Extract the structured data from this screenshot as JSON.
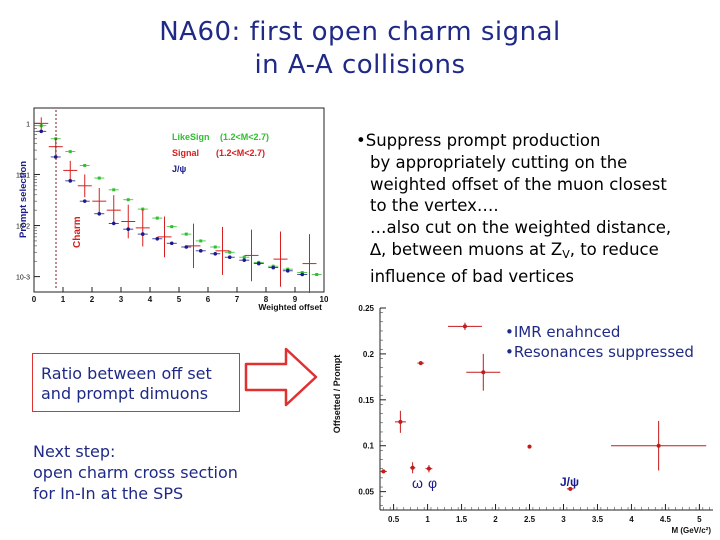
{
  "slide": {
    "title_line1": "NA60: first open charm signal",
    "title_line2": "in A-A collisions",
    "bullet1_lines": [
      "Suppress prompt production",
      "by appropriately cutting on the",
      "weighted offset of the muon closest",
      "to the vertex….",
      "…also cut on the weighted distance,"
    ],
    "bullet1_line6_a": "∆, between muons at Z",
    "bullet1_line6_sub": "V",
    "bullet1_line6_b": ", to reduce",
    "bullet1_line7": "influence of bad vertices",
    "bullet_marker": "•",
    "ratio_line1": "Ratio between off set",
    "ratio_line2": "and prompt dimuons",
    "next_line1": "Next step:",
    "next_line2": "open charm cross section",
    "next_line3": "for In-In at the SPS",
    "note1": "•IMR enahnced",
    "note2": "•Resonances suppressed"
  },
  "colors": {
    "title": "#1f2a86",
    "likesign": "#2ec02e",
    "signal": "#d62020",
    "jpsi": "#1a1a8c",
    "ratio_points": "#c41a1a"
  },
  "chart_data": [
    {
      "type": "scatter",
      "xlabel": "Weighted offset",
      "ylabel": "",
      "y_scale": "log",
      "xlim": [
        0,
        10
      ],
      "ylim": [
        0.0005,
        2
      ],
      "x_ticks": [
        "0",
        "1",
        "2",
        "3",
        "4",
        "5",
        "6",
        "7",
        "8",
        "9",
        "10"
      ],
      "y_ticks": [
        "1",
        "10-1",
        "10-2",
        "10-3"
      ],
      "legend": [
        {
          "label": "LikeSign",
          "range": "(1.2<M<2.7)",
          "color": "#2ec02e"
        },
        {
          "label": "Signal",
          "range": "(1.2<M<2.7)",
          "color": "#d62020"
        },
        {
          "label": "J/ψ",
          "range": "",
          "color": "#1a1a8c"
        }
      ],
      "region_labels": [
        "Prompt selection",
        "Charm"
      ],
      "series": [
        {
          "name": "LikeSign",
          "x": [
            0.25,
            0.75,
            1.25,
            1.75,
            2.25,
            2.75,
            3.25,
            3.75,
            4.25,
            4.75,
            5.25,
            5.75,
            6.25,
            6.75,
            7.25,
            7.75,
            8.25,
            8.75,
            9.25,
            9.75
          ],
          "y": [
            0.9,
            0.5,
            0.28,
            0.15,
            0.085,
            0.05,
            0.032,
            0.021,
            0.014,
            0.0095,
            0.0068,
            0.005,
            0.0038,
            0.003,
            0.0024,
            0.0019,
            0.0016,
            0.0014,
            0.0012,
            0.0011
          ]
        },
        {
          "name": "Signal",
          "x": [
            0.25,
            0.75,
            1.25,
            1.75,
            2.25,
            2.75,
            3.25,
            3.75,
            4.5,
            5.5,
            6.5,
            7.5,
            8.5,
            9.5
          ],
          "y": [
            1.0,
            0.35,
            0.12,
            0.06,
            0.03,
            0.02,
            0.012,
            0.009,
            0.006,
            0.004,
            0.0032,
            0.0026,
            0.0022,
            0.0018
          ]
        },
        {
          "name": "J/ψ",
          "x": [
            0.25,
            0.75,
            1.25,
            1.75,
            2.25,
            2.75,
            3.25,
            3.75,
            4.25,
            4.75,
            5.25,
            5.75,
            6.25,
            6.75,
            7.25,
            7.75,
            8.25,
            8.75,
            9.25
          ],
          "y": [
            0.7,
            0.22,
            0.075,
            0.03,
            0.017,
            0.011,
            0.0085,
            0.0068,
            0.0055,
            0.0045,
            0.0038,
            0.0032,
            0.0028,
            0.0024,
            0.0021,
            0.0018,
            0.0015,
            0.0013,
            0.0011
          ]
        }
      ]
    },
    {
      "type": "scatter",
      "xlabel": "M (GeV/c²)",
      "ylabel": "Offsetted / Prompt",
      "xlim": [
        0.3,
        5.2
      ],
      "ylim": [
        0.03,
        0.25
      ],
      "x_ticks": [
        "0.5",
        "1",
        "1.5",
        "2",
        "2.5",
        "3",
        "3.5",
        "4",
        "4.5",
        "5"
      ],
      "y_ticks": [
        "0.25",
        "0.2",
        "0.15",
        "0.1",
        "0.05"
      ],
      "annotations": [
        "ω",
        "φ",
        "J/ψ"
      ],
      "series": [
        {
          "name": "",
          "x": [
            0.35,
            0.6,
            0.78,
            0.9,
            1.02,
            1.55,
            1.82,
            2.5,
            3.1,
            4.4
          ],
          "y": [
            0.072,
            0.126,
            0.076,
            0.19,
            0.075,
            0.23,
            0.18,
            0.099,
            0.053,
            0.1
          ],
          "xerr": [
            0.05,
            0.08,
            0.04,
            0.05,
            0.05,
            0.25,
            0.25,
            0.03,
            0.05,
            0.7
          ],
          "yerr": [
            0.002,
            0.012,
            0.006,
            0.002,
            0.004,
            0.004,
            0.02,
            0.002,
            0.002,
            0.027
          ]
        }
      ]
    }
  ]
}
